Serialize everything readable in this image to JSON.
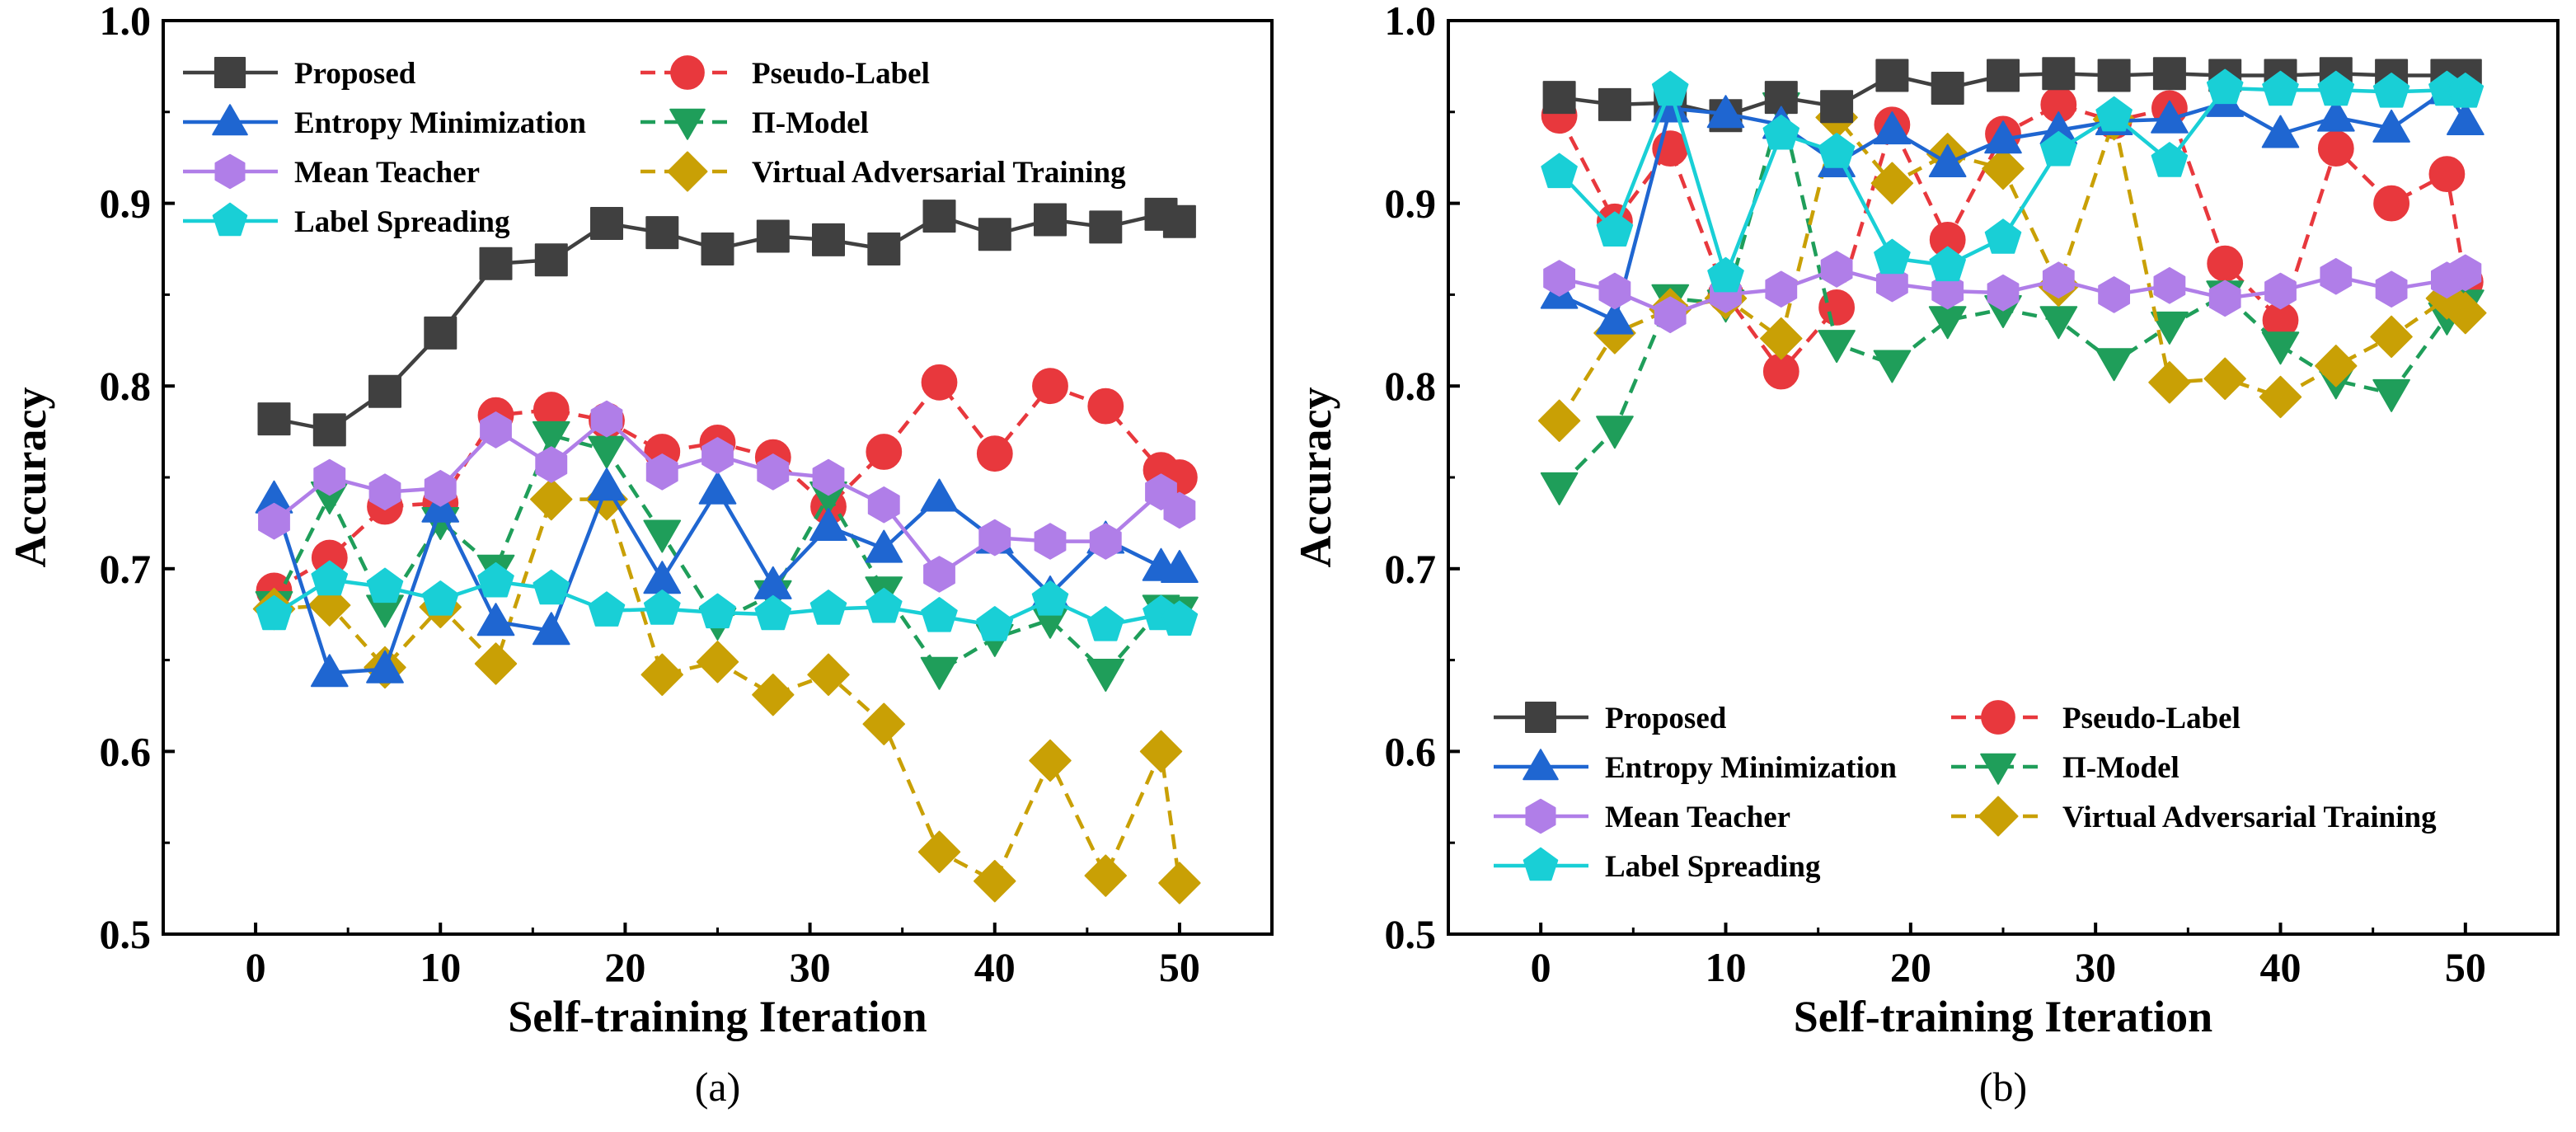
{
  "chart_data": [
    {
      "type": "line",
      "panel": "(a)",
      "xlabel": "Self-training Iteration",
      "ylabel": "Accuracy",
      "xlim": [
        -5,
        55
      ],
      "ylim": [
        0.5,
        1.0
      ],
      "xticks": [
        0,
        10,
        20,
        30,
        40,
        50
      ],
      "yticks": [
        0.5,
        0.6,
        0.7,
        0.8,
        0.9,
        1.0
      ],
      "legend_position": "top-left",
      "x": [
        1,
        4,
        7,
        10,
        13,
        16,
        19,
        22,
        25,
        28,
        31,
        34,
        37,
        40,
        43,
        46,
        49,
        50
      ],
      "series": [
        {
          "name": "Proposed",
          "color": "#404040",
          "marker": "square",
          "dash": "solid",
          "values": [
            0.782,
            0.776,
            0.797,
            0.829,
            0.867,
            0.869,
            0.889,
            0.884,
            0.875,
            0.882,
            0.88,
            0.875,
            0.893,
            0.883,
            0.891,
            0.887,
            0.894,
            0.89
          ]
        },
        {
          "name": "Entropy Minimization",
          "color": "#1f66d1",
          "marker": "triangle-up",
          "dash": "solid",
          "values": [
            0.738,
            0.643,
            0.645,
            0.733,
            0.671,
            0.666,
            0.745,
            0.694,
            0.743,
            0.691,
            0.723,
            0.711,
            0.739,
            0.716,
            0.686,
            0.716,
            0.701,
            0.7
          ]
        },
        {
          "name": "Mean Teacher",
          "color": "#b07ee8",
          "marker": "hexagon",
          "dash": "solid",
          "values": [
            0.726,
            0.75,
            0.742,
            0.744,
            0.776,
            0.757,
            0.782,
            0.753,
            0.762,
            0.753,
            0.75,
            0.735,
            0.697,
            0.717,
            0.715,
            0.715,
            0.742,
            0.732
          ]
        },
        {
          "name": "Label Spreading",
          "color": "#19cfd6",
          "marker": "pentagon",
          "dash": "solid",
          "values": [
            0.675,
            0.694,
            0.69,
            0.683,
            0.693,
            0.689,
            0.677,
            0.678,
            0.676,
            0.675,
            0.678,
            0.679,
            0.674,
            0.669,
            0.683,
            0.669,
            0.675,
            0.672
          ]
        },
        {
          "name": "Pseudo-Label",
          "color": "#e8383d",
          "marker": "circle",
          "dash": "dashed",
          "values": [
            0.688,
            0.706,
            0.734,
            0.736,
            0.784,
            0.787,
            0.781,
            0.764,
            0.769,
            0.761,
            0.734,
            0.764,
            0.802,
            0.763,
            0.8,
            0.789,
            0.754,
            0.75
          ]
        },
        {
          "name": "Π-Model",
          "color": "#1f9e5a",
          "marker": "triangle-down",
          "dash": "dashed",
          "values": [
            0.68,
            0.74,
            0.678,
            0.726,
            0.7,
            0.773,
            0.765,
            0.719,
            0.671,
            0.686,
            0.74,
            0.688,
            0.644,
            0.662,
            0.672,
            0.643,
            0.678,
            0.677
          ]
        },
        {
          "name": "Virtual Adversarial Training",
          "color": "#c9a005",
          "marker": "diamond",
          "dash": "dashed",
          "values": [
            0.678,
            0.68,
            0.646,
            0.679,
            0.648,
            0.738,
            0.738,
            0.642,
            0.649,
            0.631,
            0.642,
            0.615,
            0.545,
            0.529,
            0.595,
            0.532,
            0.6,
            0.528
          ]
        }
      ]
    },
    {
      "type": "line",
      "panel": "(b)",
      "xlabel": "Self-training Iteration",
      "ylabel": "Accuracy",
      "xlim": [
        -5,
        55
      ],
      "ylim": [
        0.5,
        1.0
      ],
      "xticks": [
        0,
        10,
        20,
        30,
        40,
        50
      ],
      "yticks": [
        0.5,
        0.6,
        0.7,
        0.8,
        0.9,
        1.0
      ],
      "legend_position": "bottom-left",
      "x": [
        1,
        4,
        7,
        10,
        13,
        16,
        19,
        22,
        25,
        28,
        31,
        34,
        37,
        40,
        43,
        46,
        49,
        50
      ],
      "series": [
        {
          "name": "Proposed",
          "color": "#404040",
          "marker": "square",
          "dash": "solid",
          "values": [
            0.958,
            0.954,
            0.955,
            0.948,
            0.958,
            0.953,
            0.97,
            0.963,
            0.97,
            0.971,
            0.97,
            0.971,
            0.97,
            0.97,
            0.971,
            0.97,
            0.97,
            0.97
          ]
        },
        {
          "name": "Entropy Minimization",
          "color": "#1f66d1",
          "marker": "triangle-up",
          "dash": "solid",
          "values": [
            0.85,
            0.836,
            0.952,
            0.949,
            0.943,
            0.922,
            0.94,
            0.922,
            0.935,
            0.94,
            0.945,
            0.946,
            0.955,
            0.938,
            0.947,
            0.941,
            0.962,
            0.945
          ]
        },
        {
          "name": "Mean Teacher",
          "color": "#b07ee8",
          "marker": "hexagon",
          "dash": "solid",
          "values": [
            0.859,
            0.852,
            0.839,
            0.85,
            0.853,
            0.864,
            0.856,
            0.852,
            0.851,
            0.858,
            0.85,
            0.855,
            0.848,
            0.852,
            0.86,
            0.853,
            0.858,
            0.862
          ]
        },
        {
          "name": "Label Spreading",
          "color": "#19cfd6",
          "marker": "pentagon",
          "dash": "solid",
          "values": [
            0.917,
            0.885,
            0.962,
            0.86,
            0.938,
            0.928,
            0.87,
            0.866,
            0.881,
            0.929,
            0.948,
            0.923,
            0.963,
            0.962,
            0.962,
            0.961,
            0.962,
            0.961
          ]
        },
        {
          "name": "Pseudo-Label",
          "color": "#e8383d",
          "marker": "circle",
          "dash": "dashed",
          "values": [
            0.948,
            0.89,
            0.93,
            0.85,
            0.808,
            0.843,
            0.943,
            0.88,
            0.938,
            0.954,
            0.945,
            0.952,
            0.867,
            0.836,
            0.93,
            0.9,
            0.916,
            0.857
          ]
        },
        {
          "name": "Π-Model",
          "color": "#1f9e5a",
          "marker": "triangle-down",
          "dash": "dashed",
          "values": [
            0.745,
            0.776,
            0.848,
            0.845,
            0.953,
            0.823,
            0.812,
            0.836,
            0.842,
            0.836,
            0.813,
            0.833,
            0.85,
            0.822,
            0.803,
            0.796,
            0.838,
            0.845
          ]
        },
        {
          "name": "Virtual Adversarial Training",
          "color": "#c9a005",
          "marker": "diamond",
          "dash": "dashed",
          "values": [
            0.781,
            0.829,
            0.842,
            0.848,
            0.826,
            0.947,
            0.911,
            0.927,
            0.919,
            0.855,
            0.946,
            0.802,
            0.804,
            0.794,
            0.811,
            0.827,
            0.848,
            0.84
          ]
        }
      ]
    }
  ]
}
